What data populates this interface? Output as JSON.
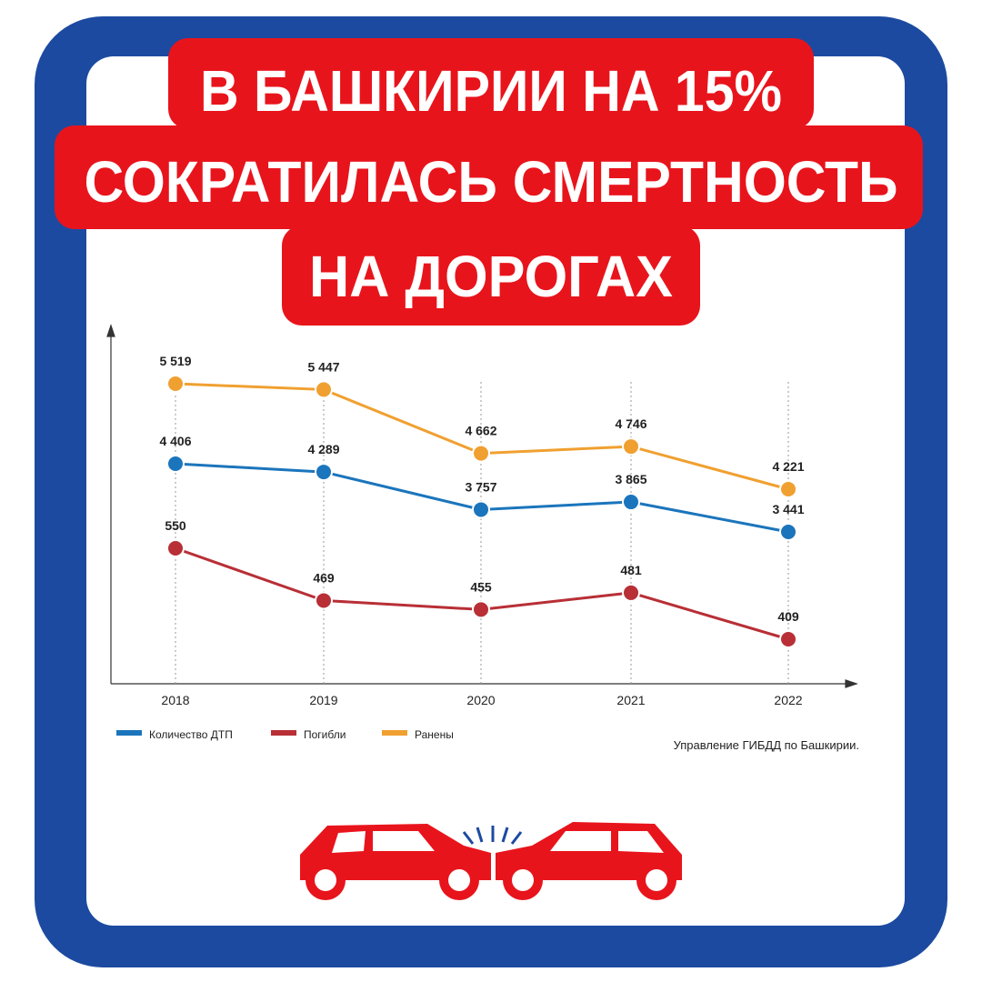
{
  "title_lines": [
    "В БАШКИРИИ НА 15%",
    "СОКРАТИЛАСЬ СМЕРТНОСТЬ",
    "НА ДОРОГАХ"
  ],
  "chart_data": {
    "type": "line",
    "categories": [
      "2018",
      "2019",
      "2020",
      "2021",
      "2022"
    ],
    "series": [
      {
        "name": "Количество ДТП",
        "color": "#1b75bc",
        "values": [
          4406,
          4289,
          3757,
          3865,
          3441
        ],
        "value_labels": [
          "4 406",
          "4 289",
          "3 757",
          "3 865",
          "3 441"
        ]
      },
      {
        "name": "Погибли",
        "color": "#b82f36",
        "values": [
          550,
          469,
          455,
          481,
          409
        ],
        "value_labels": [
          "550",
          "469",
          "455",
          "481",
          "409"
        ]
      },
      {
        "name": "Ранены",
        "color": "#f0a030",
        "values": [
          5519,
          5447,
          4662,
          4746,
          4221
        ],
        "value_labels": [
          "5 519",
          "5 447",
          "4 662",
          "4 746",
          "4 221"
        ]
      }
    ],
    "source": "Управление ГИБДД по Башкирии."
  }
}
